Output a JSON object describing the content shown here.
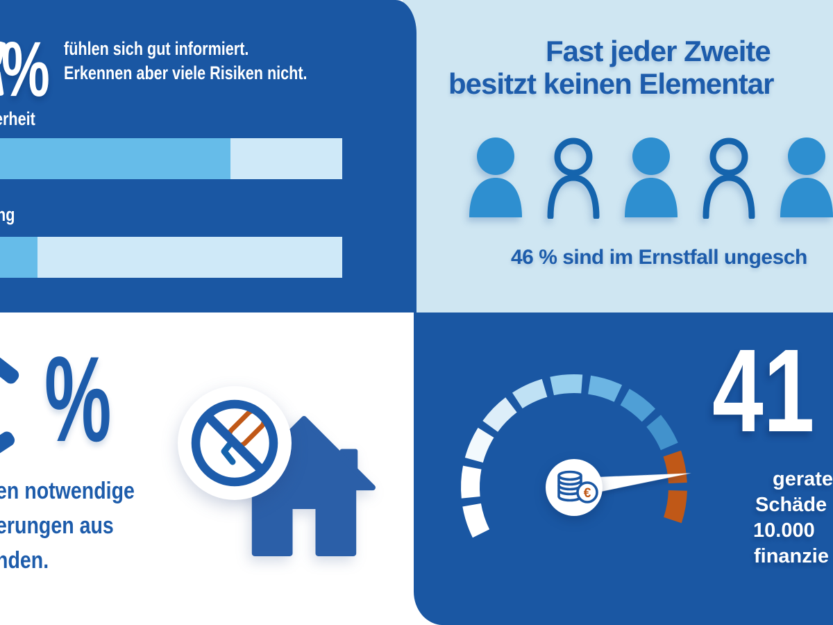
{
  "colors": {
    "panel_dark_blue": "#1a57a3",
    "panel_light_blue": "#cfe6f2",
    "text_blue": "#1d5cab",
    "bar_fill_blue": "#66bce9",
    "bar_track_blue": "#cfe9f8",
    "person_fill_blue": "#2e8fd0",
    "person_outline_blue": "#1564ad",
    "accent_orange": "#c05817",
    "house_blue": "#2b5fa8",
    "white": "#ffffff"
  },
  "panels": {
    "top_left": {
      "big_percent": "%",
      "intro": [
        "fühlen sich gut informiert.",
        "Erkennen aber viele Risiken nicht."
      ],
      "bars": [
        {
          "label_fragment": "erheit",
          "visible_fill_percent": 67.3
        },
        {
          "label_fragment": "ng",
          "visible_fill_percent": 11
        }
      ]
    },
    "top_right": {
      "title_line1": "Fast jeder Zweite",
      "title_line2": "besitzt keinen Elementar",
      "persons": [
        "filled",
        "outline",
        "filled",
        "outline",
        "filled"
      ],
      "caption": "46 % sind im Ernstfall ungesch"
    },
    "bottom_left": {
      "big_percent": "%",
      "lines": [
        "en notwendige",
        "erungen aus",
        "nden."
      ]
    },
    "bottom_right": {
      "big_number": "41",
      "lines": [
        "gerate",
        "Schäde",
        "10.000",
        "finanzie"
      ],
      "gauge": {
        "needle_angle_deg": 7,
        "segments": [
          {
            "angle": 198,
            "color": "#ffffff"
          },
          {
            "angle": 177.2,
            "color": "#ffffff"
          },
          {
            "angle": 156.4,
            "color": "#f2f9fd"
          },
          {
            "angle": 135.6,
            "color": "#ddeef9"
          },
          {
            "angle": 114.8,
            "color": "#bfe1f4"
          },
          {
            "angle": 94,
            "color": "#97cfee"
          },
          {
            "angle": 73.2,
            "color": "#6cb5e3"
          },
          {
            "angle": 52.4,
            "color": "#4f9fd6"
          },
          {
            "angle": 31.6,
            "color": "#4292cc"
          },
          {
            "angle": 10.8,
            "color": "#c05817"
          },
          {
            "angle": -10,
            "color": "#c05817"
          }
        ]
      }
    }
  },
  "chart_data": [
    {
      "type": "bar",
      "orientation": "horizontal",
      "title": "fühlen sich gut informiert. Erkennen aber viele Risiken nicht.",
      "categories": [
        "…erheit (label cut at left edge)",
        "…ng (label cut at left edge)"
      ],
      "series": [
        {
          "name": "filled share of visible bar",
          "values": [
            67.3,
            11
          ]
        }
      ],
      "note": "both bars are cropped at the left image edge; absolute percentages are not visible",
      "bar_fill_color": "#66bce9",
      "bar_track_color": "#cfe9f8"
    },
    {
      "type": "pie",
      "note": "pictogram of 5 person icons, 3 filled / 2 outlined, alternating",
      "categories": [
        "filled persons",
        "outlined persons"
      ],
      "values": [
        3,
        2
      ],
      "caption": "46 % sind im Ernstfall ungesch… (cut at right edge)"
    },
    {
      "type": "area",
      "note": "segmented semicircular gauge (speedometer) with euro-coin hub; white needle points into the orange end zone at roughly 7° above horizontal right; 11 segments shading white → blue → orange",
      "values": [
        198,
        177.2,
        156.4,
        135.6,
        114.8,
        94,
        73.2,
        52.4,
        31.6,
        10.8,
        -10
      ],
      "associated_big_number": "41"
    }
  ]
}
